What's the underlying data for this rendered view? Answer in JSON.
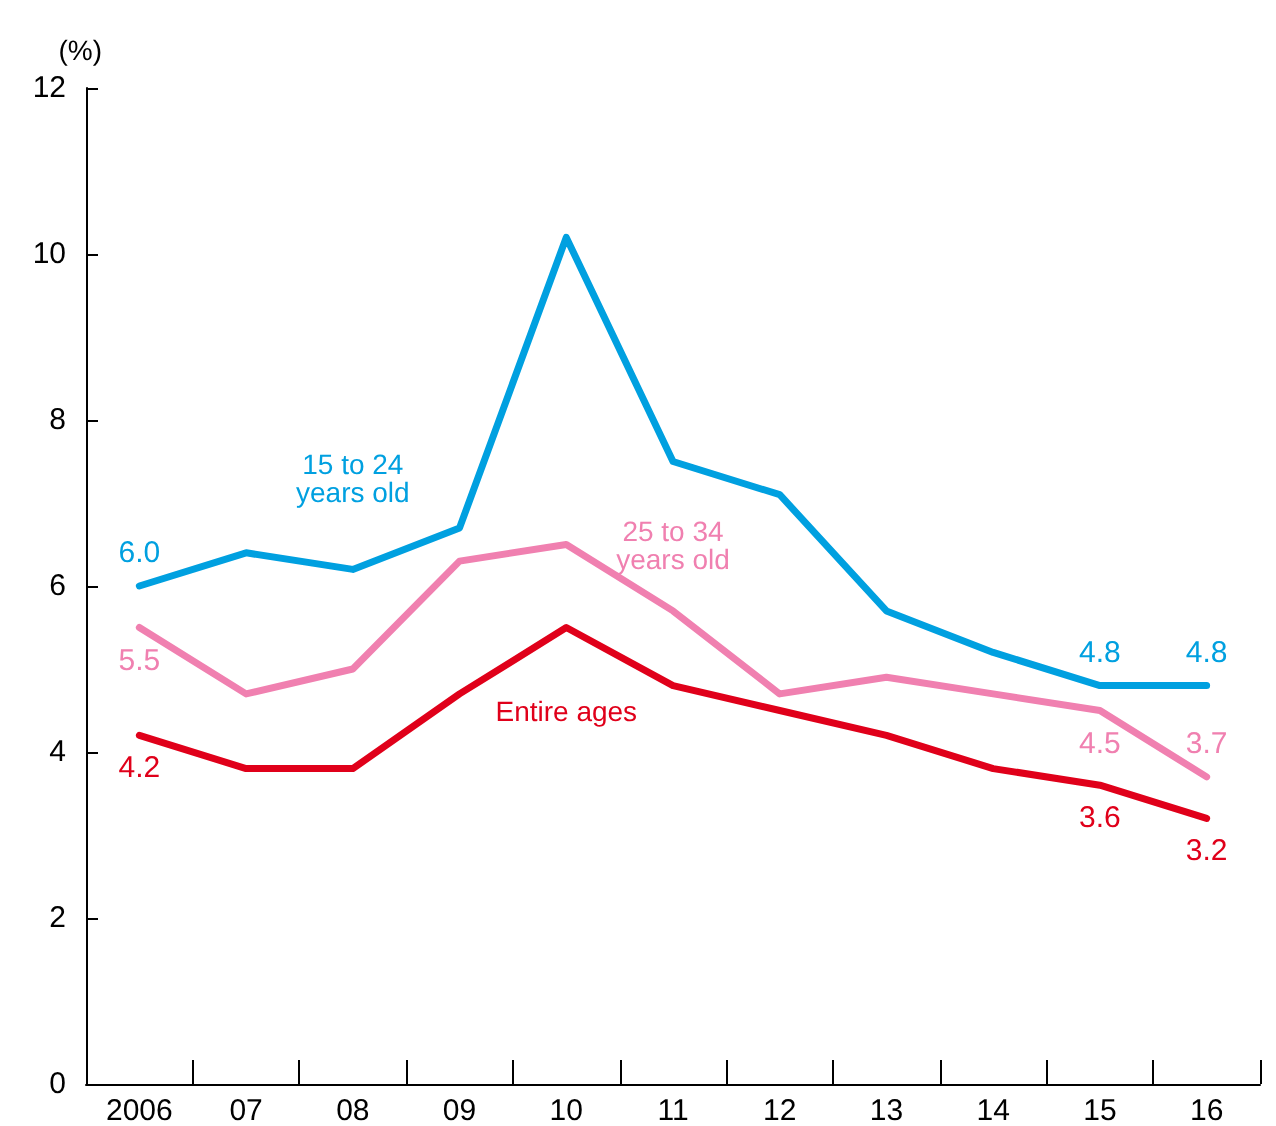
{
  "chart_data": {
    "type": "line",
    "ylabel": "(%)",
    "categories": [
      "2006",
      "07",
      "08",
      "09",
      "10",
      "11",
      "12",
      "13",
      "14",
      "15",
      "16"
    ],
    "ylim": [
      0,
      12
    ],
    "yticks": [
      0,
      2,
      4,
      6,
      8,
      10,
      12
    ],
    "grid": false,
    "legend": false,
    "marker": "none",
    "line_style": "solid",
    "series": [
      {
        "name": "15 to 24 years old",
        "color": "#00a0e0",
        "values": [
          6.0,
          6.4,
          6.2,
          6.7,
          10.2,
          7.5,
          7.1,
          5.7,
          5.2,
          4.8,
          4.8
        ],
        "value_labels": [
          "6.0",
          null,
          null,
          null,
          null,
          null,
          null,
          null,
          null,
          "4.8",
          "4.8"
        ]
      },
      {
        "name": "25 to 34 years old",
        "color": "#f080b0",
        "values": [
          5.5,
          4.7,
          5.0,
          6.3,
          6.5,
          5.7,
          4.7,
          4.9,
          4.7,
          4.5,
          3.7
        ],
        "value_labels": [
          "5.5",
          null,
          null,
          null,
          null,
          null,
          null,
          null,
          null,
          "4.5",
          "3.7"
        ]
      },
      {
        "name": "Entire ages",
        "color": "#e0001a",
        "values": [
          4.2,
          3.8,
          3.8,
          4.7,
          5.5,
          4.8,
          4.5,
          4.2,
          3.8,
          3.6,
          3.2
        ],
        "value_labels": [
          "4.2",
          null,
          null,
          null,
          null,
          null,
          null,
          null,
          null,
          "3.6",
          "3.2"
        ]
      }
    ]
  }
}
